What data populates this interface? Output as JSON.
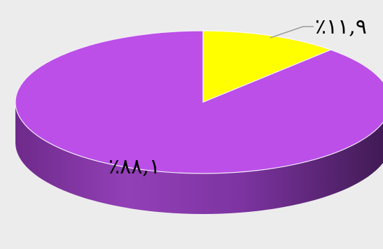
{
  "chart_data": {
    "type": "pie",
    "style": "3d",
    "title": "",
    "slices": [
      {
        "label": "٪٨٨,١",
        "value": 88.1,
        "color": "#bb4fe8"
      },
      {
        "label": "٪١١,٩",
        "value": 11.9,
        "color": "#ffff00"
      }
    ],
    "legend": "none",
    "background": "#ececec"
  }
}
